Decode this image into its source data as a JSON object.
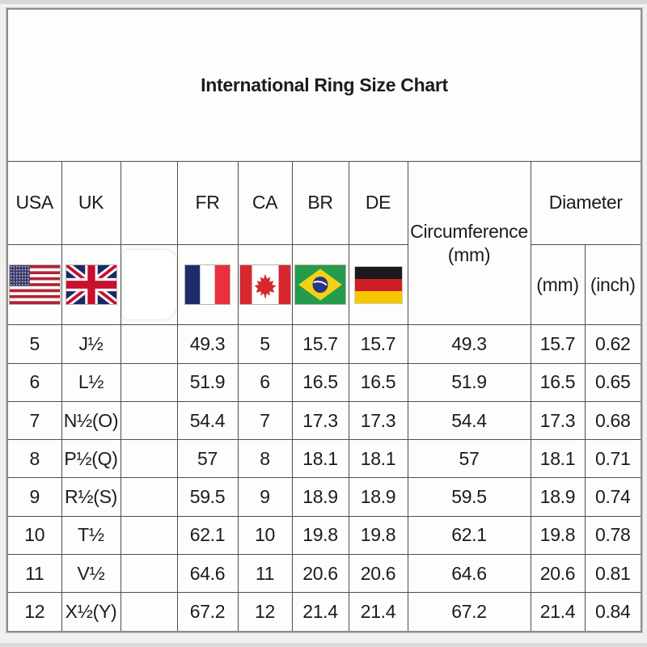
{
  "page": {
    "title": "International Ring Size Chart"
  },
  "table": {
    "country_headers": [
      "USA",
      "UK",
      "",
      "FR",
      "CA",
      "BR",
      "DE"
    ],
    "circumference_header": [
      "Circumference",
      "(mm)"
    ],
    "diameter_header": "Diameter",
    "diameter_units": [
      "(mm)",
      "(inch)"
    ],
    "flag_icons": [
      "us-flag",
      "uk-flag",
      "whiteout-blank",
      "fr-flag",
      "ca-flag",
      "br-flag",
      "de-flag"
    ]
  },
  "chart_data": {
    "type": "table",
    "title": "International Ring Size Chart",
    "columns": [
      "USA",
      "UK",
      "",
      "FR",
      "CA",
      "BR",
      "DE",
      "Circumference (mm)",
      "Diameter (mm)",
      "Diameter (inch)"
    ],
    "rows": [
      [
        "5",
        "J½",
        "",
        "49.3",
        "5",
        "15.7",
        "15.7",
        "49.3",
        "15.7",
        "0.62"
      ],
      [
        "6",
        "L½",
        "",
        "51.9",
        "6",
        "16.5",
        "16.5",
        "51.9",
        "16.5",
        "0.65"
      ],
      [
        "7",
        "N½(O)",
        "",
        "54.4",
        "7",
        "17.3",
        "17.3",
        "54.4",
        "17.3",
        "0.68"
      ],
      [
        "8",
        "P½(Q)",
        "",
        "57",
        "8",
        "18.1",
        "18.1",
        "57",
        "18.1",
        "0.71"
      ],
      [
        "9",
        "R½(S)",
        "",
        "59.5",
        "9",
        "18.9",
        "18.9",
        "59.5",
        "18.9",
        "0.74"
      ],
      [
        "10",
        "T½",
        "",
        "62.1",
        "10",
        "19.8",
        "19.8",
        "62.1",
        "19.8",
        "0.78"
      ],
      [
        "11",
        "V½",
        "",
        "64.6",
        "11",
        "20.6",
        "20.6",
        "64.6",
        "20.6",
        "0.81"
      ],
      [
        "12",
        "X½(Y)",
        "",
        "67.2",
        "12",
        "21.4",
        "21.4",
        "67.2",
        "21.4",
        "0.84"
      ]
    ]
  },
  "colors": {
    "page_bg": "#f1f0ee",
    "cell_bg": "#fdfdfb",
    "grid_line": "#4e4e4e",
    "text": "#1c1c1c"
  }
}
